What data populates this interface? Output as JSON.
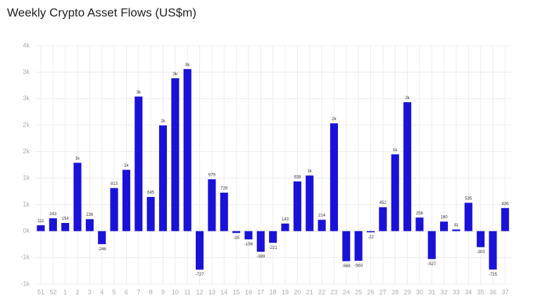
{
  "chart_data": {
    "type": "bar",
    "title": "Weekly Crypto Asset Flows (US$m)",
    "categories": [
      "51",
      "52",
      "1",
      "2",
      "3",
      "4",
      "5",
      "6",
      "7",
      "8",
      "9",
      "10",
      "11",
      "12",
      "13",
      "14",
      "15",
      "16",
      "17",
      "18",
      "19",
      "20",
      "21",
      "22",
      "23",
      "24",
      "25",
      "26",
      "27",
      "28",
      "29",
      "30",
      "31",
      "32",
      "33",
      "34",
      "35",
      "36",
      "37"
    ],
    "values": [
      111,
      243,
      154,
      1290,
      226,
      -246,
      813,
      1157,
      2540,
      645,
      1995,
      2886,
      3059,
      -727,
      979,
      726,
      -35,
      -156,
      -389,
      -221,
      143,
      938,
      1050,
      214,
      2035,
      -568,
      -560,
      -22,
      452,
      1450,
      2434,
      256,
      -527,
      180,
      31,
      535,
      -303,
      -725,
      436
    ],
    "value_labels": [
      "111",
      "243",
      "154",
      "1k",
      "226",
      "-246",
      "813",
      "1k",
      "3k",
      "645",
      "2k",
      "3k",
      "3k",
      "-727",
      "979",
      "726",
      "-35",
      "-156",
      "-389",
      "-221",
      "143",
      "938",
      "1k",
      "214",
      "2k",
      "-568",
      "-560",
      "-22",
      "452",
      "1k",
      "2k",
      "256",
      "-527",
      "180",
      "31",
      "535",
      "-303",
      "-725",
      "436"
    ],
    "color": "#1a12d8",
    "ylim": [
      -1000,
      3500
    ],
    "yticks": [
      {
        "value": -1000,
        "label": "-1k"
      },
      {
        "value": -500,
        "label": "-1k"
      },
      {
        "value": 0,
        "label": "0k"
      },
      {
        "value": 500,
        "label": "1k"
      },
      {
        "value": 1000,
        "label": "1k"
      },
      {
        "value": 1500,
        "label": "2k"
      },
      {
        "value": 2000,
        "label": "2k"
      },
      {
        "value": 2500,
        "label": "3k"
      },
      {
        "value": 3000,
        "label": "3k"
      },
      {
        "value": 3500,
        "label": "4k"
      }
    ],
    "grid": true
  }
}
